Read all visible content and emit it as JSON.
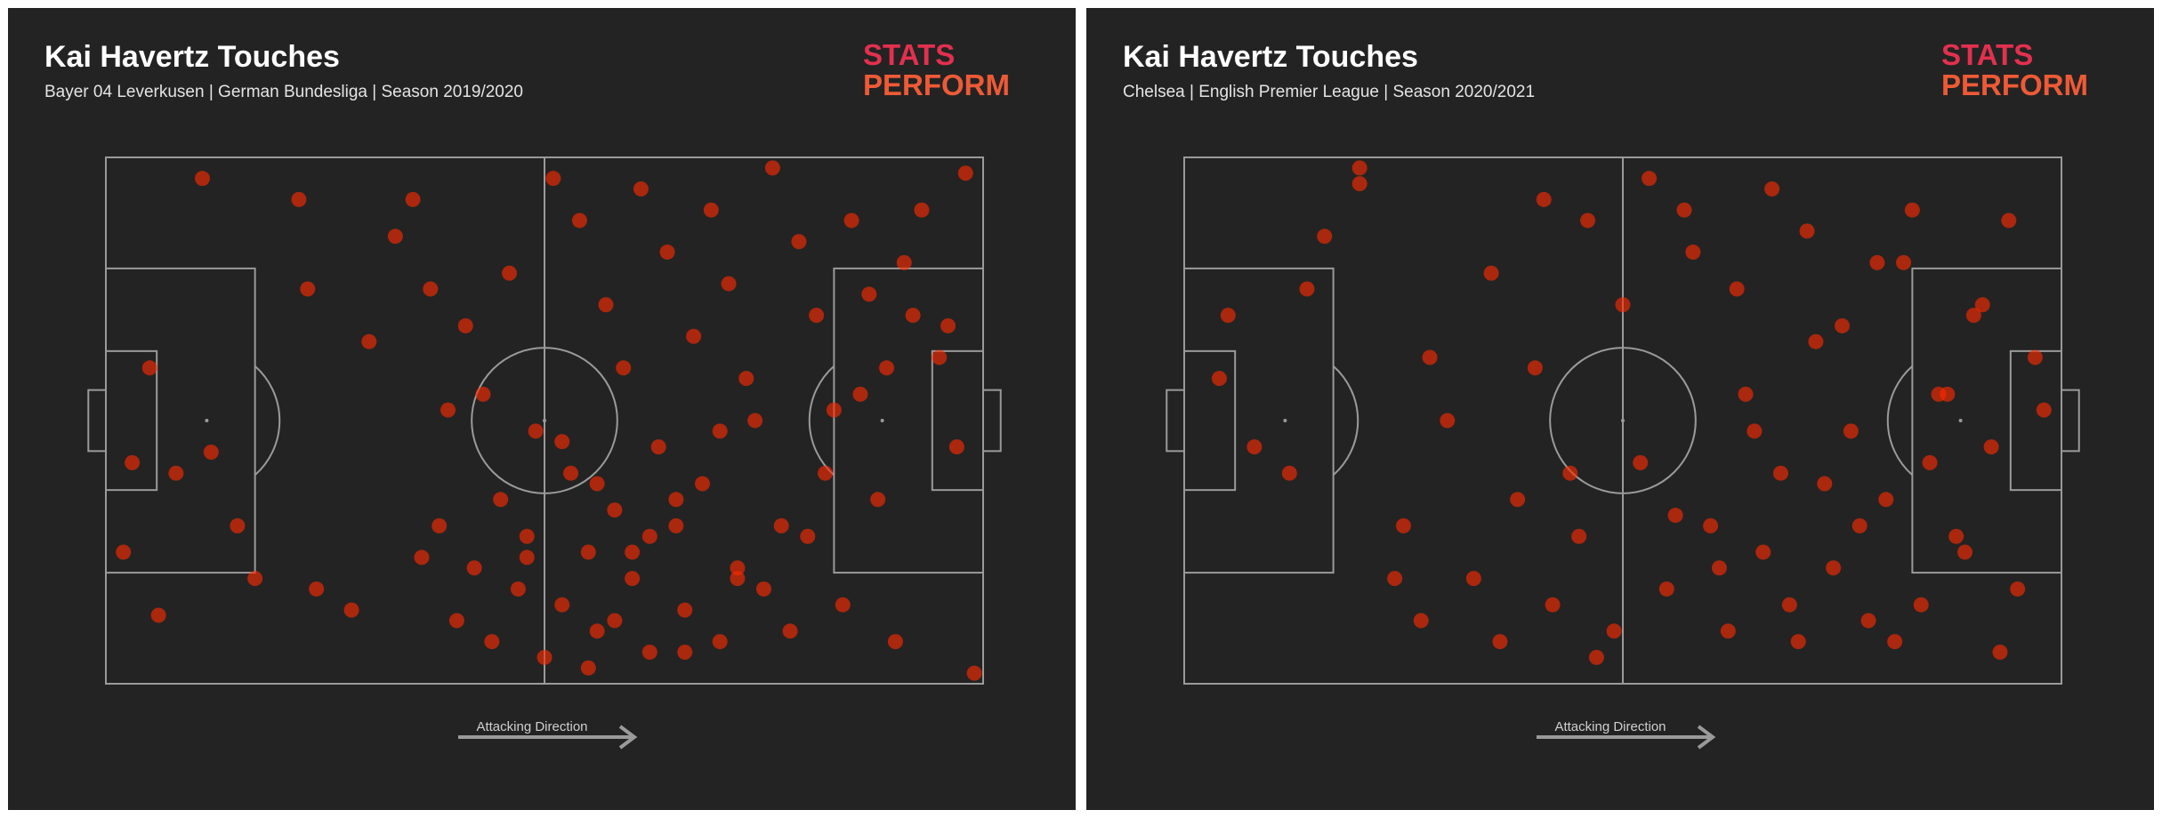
{
  "chart_data": [
    {
      "type": "scatter",
      "title": "Kai Havertz Touches",
      "subtitle": "Bayer 04 Leverkusen | German Bundesliga | Season 2019/2020",
      "brand": [
        "STATS",
        "PERFORM"
      ],
      "annotation": "Attacking Direction",
      "color": "#ff2a00",
      "xlim": [
        0,
        100
      ],
      "ylim": [
        0,
        100
      ],
      "x": [
        11,
        22,
        23,
        17,
        5,
        3,
        8,
        12,
        15,
        2,
        6,
        24,
        28,
        36,
        38,
        40,
        42,
        45,
        44,
        47,
        48,
        50,
        52,
        53,
        55,
        56,
        58,
        60,
        62,
        63,
        65,
        66,
        68,
        70,
        72,
        74,
        75,
        78,
        80,
        82,
        84,
        86,
        88,
        90,
        92,
        95,
        97,
        99,
        35,
        33,
        30,
        46,
        51,
        54,
        57,
        59,
        61,
        64,
        67,
        69,
        71,
        73,
        76,
        79,
        81,
        83,
        85,
        87,
        89,
        91,
        93,
        96,
        98,
        49,
        43,
        41,
        39,
        37,
        55,
        60,
        65,
        70,
        58,
        62,
        66,
        72,
        77,
        52,
        56,
        48
      ],
      "y": [
        96,
        92,
        75,
        20,
        60,
        42,
        40,
        44,
        30,
        25,
        13,
        18,
        14,
        24,
        30,
        12,
        22,
        35,
        8,
        18,
        28,
        5,
        15,
        40,
        25,
        10,
        33,
        20,
        6,
        45,
        30,
        14,
        38,
        8,
        22,
        50,
        18,
        10,
        28,
        40,
        15,
        55,
        35,
        8,
        70,
        62,
        45,
        2,
        92,
        85,
        65,
        78,
        96,
        88,
        72,
        60,
        94,
        82,
        66,
        90,
        76,
        58,
        98,
        84,
        70,
        52,
        88,
        74,
        60,
        80,
        90,
        68,
        97,
        48,
        55,
        68,
        52,
        75,
        3,
        25,
        35,
        48,
        12,
        28,
        6,
        20,
        30,
        46,
        38,
        24
      ]
    },
    {
      "type": "scatter",
      "title": "Kai Havertz Touches",
      "subtitle": "Chelsea | English Premier League | Season 2020/2021",
      "brand": [
        "STATS",
        "PERFORM"
      ],
      "annotation": "Attacking Direction",
      "color": "#ff2a00",
      "xlim": [
        0,
        100
      ],
      "ylim": [
        0,
        100
      ],
      "x": [
        5,
        8,
        4,
        12,
        16,
        20,
        25,
        27,
        30,
        33,
        36,
        38,
        40,
        42,
        45,
        47,
        50,
        52,
        55,
        57,
        60,
        62,
        64,
        66,
        68,
        70,
        72,
        74,
        76,
        78,
        80,
        82,
        84,
        86,
        88,
        90,
        92,
        95,
        97,
        35,
        41,
        46,
        53,
        58,
        63,
        67,
        71,
        75,
        79,
        83,
        87,
        91,
        94,
        24,
        28,
        44,
        49,
        56,
        61,
        65,
        69,
        73,
        77,
        81,
        85,
        89,
        93,
        98,
        20,
        14
      ],
      "y": [
        70,
        45,
        58,
        40,
        85,
        95,
        30,
        12,
        50,
        20,
        8,
        35,
        60,
        15,
        28,
        5,
        72,
        42,
        18,
        90,
        30,
        10,
        55,
        25,
        40,
        8,
        65,
        22,
        48,
        12,
        35,
        80,
        15,
        55,
        28,
        70,
        45,
        18,
        62,
        78,
        92,
        88,
        96,
        82,
        75,
        94,
        86,
        68,
        80,
        90,
        55,
        72,
        88,
        20,
        62,
        40,
        10,
        32,
        22,
        48,
        15,
        38,
        30,
        8,
        42,
        25,
        6,
        52,
        98,
        75
      ]
    }
  ]
}
